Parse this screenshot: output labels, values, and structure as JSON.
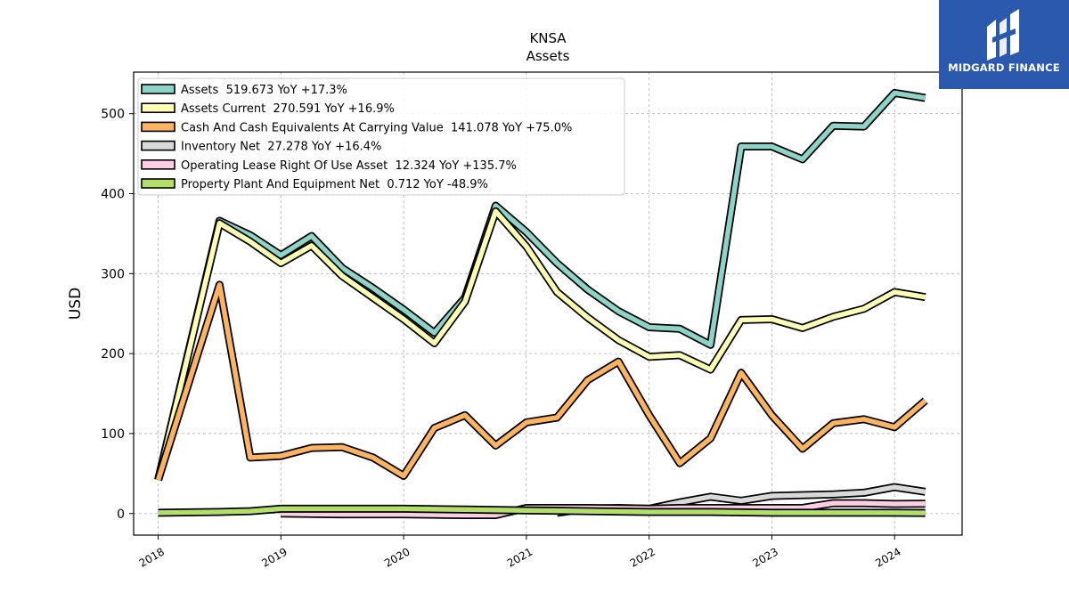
{
  "chart_data": {
    "type": "line",
    "title": "KNSA",
    "subtitle": "Assets",
    "xlabel": "",
    "ylabel": "USD",
    "xlim": [
      2017.8,
      2024.55
    ],
    "ylim": [
      -27,
      552
    ],
    "x_ticks": [
      "2018",
      "2019",
      "2020",
      "2021",
      "2022",
      "2023",
      "2024"
    ],
    "y_ticks": [
      0,
      100,
      200,
      300,
      400,
      500
    ],
    "grid": true,
    "legend_position": "top-left",
    "series": [
      {
        "name": "Assets",
        "legend": "Assets  519.673 YoY +17.3%",
        "color": "#8dd3c7",
        "points": [
          [
            2018.0,
            42
          ],
          [
            2018.5,
            366
          ],
          [
            2018.75,
            348
          ],
          [
            2019.0,
            323
          ],
          [
            2019.25,
            347
          ],
          [
            2019.5,
            307
          ],
          [
            2019.75,
            282
          ],
          [
            2020.0,
            255
          ],
          [
            2020.25,
            226
          ],
          [
            2020.5,
            270
          ],
          [
            2020.75,
            385
          ],
          [
            2021.0,
            352
          ],
          [
            2021.25,
            313
          ],
          [
            2021.5,
            280
          ],
          [
            2021.75,
            253
          ],
          [
            2022.0,
            233
          ],
          [
            2022.25,
            231
          ],
          [
            2022.5,
            211
          ],
          [
            2022.75,
            459
          ],
          [
            2023.0,
            459
          ],
          [
            2023.25,
            443
          ],
          [
            2023.5,
            485
          ],
          [
            2023.75,
            484
          ],
          [
            2024.0,
            526
          ],
          [
            2024.25,
            519.673
          ]
        ]
      },
      {
        "name": "Assets Current",
        "legend": "Assets Current  270.591 YoY +16.9%",
        "color": "#ffffb3",
        "points": [
          [
            2018.0,
            42
          ],
          [
            2018.5,
            363
          ],
          [
            2018.75,
            340
          ],
          [
            2019.0,
            313
          ],
          [
            2019.25,
            335
          ],
          [
            2019.5,
            297
          ],
          [
            2019.75,
            270
          ],
          [
            2020.0,
            243
          ],
          [
            2020.25,
            213
          ],
          [
            2020.5,
            265
          ],
          [
            2020.75,
            378
          ],
          [
            2021.0,
            334
          ],
          [
            2021.25,
            277
          ],
          [
            2021.5,
            245
          ],
          [
            2021.75,
            217
          ],
          [
            2022.0,
            196
          ],
          [
            2022.25,
            198
          ],
          [
            2022.5,
            180
          ],
          [
            2022.75,
            242
          ],
          [
            2023.0,
            243
          ],
          [
            2023.25,
            232
          ],
          [
            2023.5,
            246
          ],
          [
            2023.75,
            256
          ],
          [
            2024.0,
            277
          ],
          [
            2024.25,
            270.591
          ]
        ]
      },
      {
        "name": "Cash And Cash Equivalents At Carrying Value",
        "legend": "Cash And Cash Equivalents At Carrying Value  141.078 YoY +75.0%",
        "color": "#fdb462",
        "points": [
          [
            2018.0,
            42
          ],
          [
            2018.5,
            286
          ],
          [
            2018.75,
            70
          ],
          [
            2019.0,
            72
          ],
          [
            2019.25,
            82
          ],
          [
            2019.5,
            83
          ],
          [
            2019.75,
            70
          ],
          [
            2020.0,
            47
          ],
          [
            2020.25,
            107
          ],
          [
            2020.5,
            123
          ],
          [
            2020.75,
            85
          ],
          [
            2021.0,
            114
          ],
          [
            2021.25,
            120
          ],
          [
            2021.5,
            167
          ],
          [
            2021.75,
            190
          ],
          [
            2022.0,
            123
          ],
          [
            2022.25,
            63
          ],
          [
            2022.5,
            94
          ],
          [
            2022.75,
            176
          ],
          [
            2023.0,
            123
          ],
          [
            2023.25,
            81
          ],
          [
            2023.5,
            113
          ],
          [
            2023.75,
            118
          ],
          [
            2024.0,
            108
          ],
          [
            2024.25,
            141.078
          ]
        ]
      },
      {
        "name": "Inventory Net",
        "legend": "Inventory Net  27.278 YoY +16.4%",
        "color": "#d9d9d9",
        "points": [
          [
            2021.25,
            1
          ],
          [
            2021.5,
            6
          ],
          [
            2021.75,
            7
          ],
          [
            2022.0,
            6
          ],
          [
            2022.25,
            14
          ],
          [
            2022.5,
            21
          ],
          [
            2022.75,
            16
          ],
          [
            2023.0,
            22
          ],
          [
            2023.25,
            23
          ],
          [
            2023.5,
            24
          ],
          [
            2023.75,
            26
          ],
          [
            2024.0,
            33
          ],
          [
            2024.25,
            27.278
          ]
        ]
      },
      {
        "name": "Operating Lease Right Of Use Asset",
        "legend": "Operating Lease Right Of Use Asset  12.324 YoY +135.7%",
        "color": "#fccde5",
        "points": [
          [
            2019.0,
            0
          ],
          [
            2019.5,
            -1
          ],
          [
            2020.0,
            -1
          ],
          [
            2020.5,
            -2
          ],
          [
            2020.75,
            -2
          ],
          [
            2021.0,
            7
          ],
          [
            2021.5,
            7
          ],
          [
            2022.0,
            6
          ],
          [
            2022.25,
            7
          ],
          [
            2022.5,
            7
          ],
          [
            2022.75,
            7
          ],
          [
            2023.0,
            7
          ],
          [
            2023.25,
            7
          ],
          [
            2023.5,
            13
          ],
          [
            2023.75,
            13
          ],
          [
            2024.0,
            12
          ],
          [
            2024.25,
            12.324
          ]
        ]
      },
      {
        "name": "Property Plant And Equipment Net",
        "legend": "Property Plant And Equipment Net  0.712 YoY -48.9%",
        "color": "#b3de69",
        "points": [
          [
            2018.0,
            1
          ],
          [
            2018.5,
            2
          ],
          [
            2018.75,
            3
          ],
          [
            2019.0,
            6
          ],
          [
            2019.5,
            6
          ],
          [
            2020.0,
            6
          ],
          [
            2020.5,
            5
          ],
          [
            2021.0,
            4
          ],
          [
            2021.5,
            3
          ],
          [
            2022.0,
            2
          ],
          [
            2022.5,
            2
          ],
          [
            2023.0,
            1
          ],
          [
            2023.5,
            1
          ],
          [
            2024.0,
            1
          ],
          [
            2024.25,
            0.712
          ]
        ]
      }
    ]
  },
  "branding": {
    "name": "MIDGARD FINANCE"
  }
}
